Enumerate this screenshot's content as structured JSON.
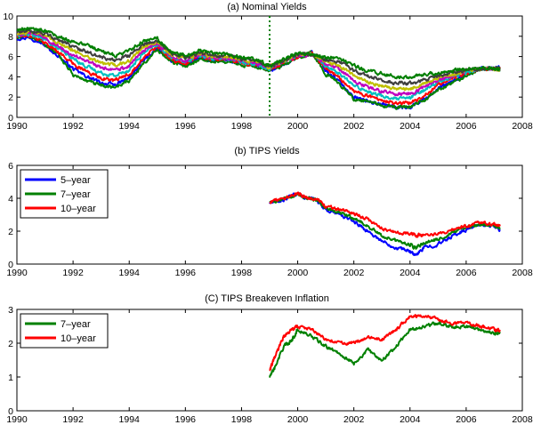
{
  "chart_data": [
    {
      "type": "line",
      "title": "(a) Nominal Yields",
      "xlim": [
        1990,
        2008
      ],
      "ylim": [
        0,
        10
      ],
      "xticks": [
        1990,
        1992,
        1994,
        1996,
        1998,
        2000,
        2002,
        2004,
        2006,
        2008
      ],
      "yticks": [
        0,
        2,
        4,
        6,
        8,
        10
      ],
      "grid": false,
      "vline": {
        "x": 1999.0,
        "color": "#008000",
        "style": "dotted"
      },
      "x": [
        1990.0,
        1990.5,
        1991.0,
        1991.5,
        1992.0,
        1992.5,
        1993.0,
        1993.5,
        1994.0,
        1994.5,
        1995.0,
        1995.5,
        1996.0,
        1996.5,
        1997.0,
        1997.5,
        1998.0,
        1998.5,
        1999.0,
        1999.5,
        2000.0,
        2000.5,
        2001.0,
        2001.5,
        2002.0,
        2002.5,
        2003.0,
        2003.5,
        2004.0,
        2004.5,
        2005.0,
        2005.5,
        2006.0,
        2006.5,
        2007.0,
        2007.2
      ],
      "series": [
        {
          "color": "#0000ff",
          "values": [
            7.8,
            7.9,
            7.1,
            6.0,
            4.8,
            4.0,
            3.4,
            3.2,
            3.9,
            5.6,
            6.8,
            5.6,
            5.2,
            5.8,
            5.6,
            5.6,
            5.3,
            5.1,
            4.6,
            5.2,
            6.0,
            6.5,
            4.6,
            3.5,
            2.0,
            1.6,
            1.3,
            1.0,
            1.0,
            1.8,
            2.8,
            3.5,
            4.2,
            4.8,
            4.9,
            4.9
          ]
        },
        {
          "color": "#008000",
          "values": [
            7.9,
            8.0,
            7.2,
            6.1,
            4.2,
            3.6,
            3.1,
            3.0,
            3.6,
            5.3,
            6.6,
            5.5,
            5.1,
            5.7,
            5.5,
            5.5,
            5.2,
            5.0,
            4.6,
            5.2,
            5.9,
            6.4,
            4.3,
            3.3,
            1.8,
            1.5,
            1.2,
            1.0,
            1.0,
            1.7,
            2.7,
            3.4,
            4.1,
            4.8,
            4.9,
            4.8
          ]
        },
        {
          "color": "#ff0000",
          "values": [
            8.0,
            8.1,
            7.4,
            6.4,
            5.3,
            4.5,
            3.9,
            3.6,
            4.3,
            5.9,
            7.0,
            5.7,
            5.3,
            6.0,
            5.7,
            5.7,
            5.4,
            5.2,
            4.7,
            5.4,
            6.0,
            6.4,
            4.9,
            3.9,
            2.6,
            2.1,
            1.7,
            1.4,
            1.4,
            2.2,
            3.2,
            3.8,
            4.4,
            4.8,
            4.8,
            4.8
          ]
        },
        {
          "color": "#00bfbf",
          "values": [
            8.1,
            8.2,
            7.7,
            6.7,
            5.8,
            5.0,
            4.4,
            4.1,
            4.7,
            6.3,
            7.2,
            5.9,
            5.5,
            6.1,
            5.8,
            5.8,
            5.5,
            5.3,
            4.8,
            5.5,
            6.1,
            6.3,
            5.1,
            4.3,
            3.1,
            2.6,
            2.1,
            1.8,
            1.9,
            2.7,
            3.5,
            4.0,
            4.5,
            4.8,
            4.8,
            4.7
          ]
        },
        {
          "color": "#bf00bf",
          "values": [
            8.2,
            8.3,
            7.9,
            7.0,
            6.2,
            5.5,
            4.9,
            4.6,
            5.1,
            6.6,
            7.3,
            6.0,
            5.6,
            6.2,
            5.9,
            5.9,
            5.6,
            5.4,
            4.9,
            5.5,
            6.1,
            6.2,
            5.3,
            4.7,
            3.6,
            3.0,
            2.6,
            2.3,
            2.3,
            3.0,
            3.7,
            4.1,
            4.6,
            4.8,
            4.8,
            4.7
          ]
        },
        {
          "color": "#bfbf00",
          "values": [
            8.3,
            8.4,
            8.1,
            7.3,
            6.6,
            6.0,
            5.4,
            5.1,
            5.6,
            6.9,
            7.5,
            6.2,
            5.8,
            6.3,
            6.0,
            6.0,
            5.7,
            5.5,
            5.0,
            5.6,
            6.2,
            6.2,
            5.5,
            5.1,
            4.1,
            3.5,
            3.1,
            2.8,
            2.8,
            3.3,
            3.9,
            4.2,
            4.6,
            4.8,
            4.8,
            4.7
          ]
        },
        {
          "color": "#3f3f3f",
          "values": [
            8.4,
            8.5,
            8.3,
            7.6,
            7.0,
            6.5,
            5.9,
            5.6,
            6.1,
            7.2,
            7.6,
            6.3,
            5.9,
            6.4,
            6.1,
            6.1,
            5.8,
            5.6,
            5.0,
            5.7,
            6.2,
            6.2,
            5.7,
            5.5,
            4.6,
            4.1,
            3.7,
            3.4,
            3.4,
            3.7,
            4.1,
            4.4,
            4.7,
            4.8,
            4.8,
            4.7
          ]
        },
        {
          "color": "#007f00",
          "values": [
            8.6,
            8.8,
            8.6,
            8.0,
            7.5,
            7.1,
            6.5,
            6.1,
            6.6,
            7.5,
            7.8,
            6.5,
            6.1,
            6.6,
            6.3,
            6.2,
            5.9,
            5.7,
            5.1,
            5.8,
            6.3,
            6.2,
            5.9,
            5.8,
            5.1,
            4.6,
            4.3,
            4.0,
            4.0,
            4.2,
            4.4,
            4.6,
            4.8,
            4.9,
            4.8,
            4.7
          ]
        }
      ]
    },
    {
      "type": "line",
      "title": "(b) TIPS Yields",
      "xlim": [
        1990,
        2008
      ],
      "ylim": [
        0,
        6
      ],
      "xticks": [
        1990,
        1992,
        1994,
        1996,
        1998,
        2000,
        2002,
        2004,
        2006,
        2008
      ],
      "yticks": [
        0,
        2,
        4,
        6
      ],
      "grid": false,
      "legend_position": "top-left",
      "x": [
        1999.0,
        1999.5,
        2000.0,
        2000.3,
        2000.7,
        2001.0,
        2001.5,
        2002.0,
        2002.5,
        2003.0,
        2003.5,
        2004.0,
        2004.2,
        2004.5,
        2005.0,
        2005.5,
        2006.0,
        2006.5,
        2007.0,
        2007.2
      ],
      "series": [
        {
          "name": "5–year",
          "color": "#0000ff",
          "values": [
            3.7,
            3.9,
            4.3,
            4.0,
            3.9,
            3.3,
            3.0,
            2.6,
            2.0,
            1.4,
            1.0,
            0.8,
            0.5,
            1.0,
            1.2,
            1.7,
            2.1,
            2.4,
            2.3,
            2.1
          ]
        },
        {
          "name": "7–year",
          "color": "#008000",
          "values": [
            3.8,
            3.9,
            4.3,
            4.0,
            3.9,
            3.4,
            3.1,
            2.8,
            2.3,
            1.7,
            1.4,
            1.2,
            1.0,
            1.3,
            1.5,
            1.9,
            2.2,
            2.4,
            2.4,
            2.2
          ]
        },
        {
          "name": "10–year",
          "color": "#ff0000",
          "values": [
            3.8,
            4.0,
            4.3,
            4.1,
            3.9,
            3.5,
            3.3,
            3.1,
            2.7,
            2.2,
            1.9,
            1.9,
            1.7,
            1.8,
            1.8,
            2.1,
            2.3,
            2.5,
            2.4,
            2.3
          ]
        }
      ]
    },
    {
      "type": "line",
      "title": "(C) TIPS Breakeven Inflation",
      "xlim": [
        1990,
        2008
      ],
      "ylim": [
        0,
        3
      ],
      "xticks": [
        1990,
        1992,
        1994,
        1996,
        1998,
        2000,
        2002,
        2004,
        2006,
        2008
      ],
      "yticks": [
        0,
        1,
        2,
        3
      ],
      "grid": false,
      "legend_position": "top-left",
      "x": [
        1999.0,
        1999.2,
        1999.5,
        1999.8,
        2000.0,
        2000.5,
        2001.0,
        2001.5,
        2002.0,
        2002.5,
        2003.0,
        2003.5,
        2004.0,
        2004.5,
        2005.0,
        2005.5,
        2006.0,
        2006.5,
        2007.0,
        2007.2
      ],
      "series": [
        {
          "name": "7–year",
          "color": "#008000",
          "values": [
            1.0,
            1.3,
            1.9,
            2.1,
            2.4,
            2.2,
            1.9,
            1.7,
            1.4,
            1.8,
            1.5,
            1.9,
            2.4,
            2.5,
            2.6,
            2.5,
            2.5,
            2.4,
            2.3,
            2.3
          ]
        },
        {
          "name": "10–year",
          "color": "#ff0000",
          "values": [
            1.2,
            1.6,
            2.2,
            2.4,
            2.5,
            2.4,
            2.1,
            2.0,
            2.0,
            2.2,
            2.1,
            2.4,
            2.8,
            2.8,
            2.7,
            2.6,
            2.6,
            2.5,
            2.4,
            2.4
          ]
        }
      ]
    }
  ]
}
